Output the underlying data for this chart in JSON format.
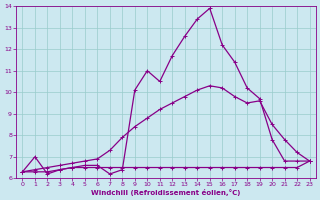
{
  "xlabel": "Windchill (Refroidissement éolien,°C)",
  "xlim": [
    -0.5,
    23.5
  ],
  "ylim": [
    6,
    14
  ],
  "xticks": [
    0,
    1,
    2,
    3,
    4,
    5,
    6,
    7,
    8,
    9,
    10,
    11,
    12,
    13,
    14,
    15,
    16,
    17,
    18,
    19,
    20,
    21,
    22,
    23
  ],
  "yticks": [
    6,
    7,
    8,
    9,
    10,
    11,
    12,
    13,
    14
  ],
  "bg_color": "#cce8f0",
  "line_color": "#880088",
  "grid_color": "#99cccc",
  "line1_x": [
    0,
    1,
    2,
    3,
    4,
    5,
    6,
    7,
    8,
    9,
    10,
    11,
    12,
    13,
    14,
    15,
    16,
    17,
    18,
    19,
    20,
    21,
    22,
    23
  ],
  "line1_y": [
    6.3,
    7.0,
    6.2,
    6.4,
    6.5,
    6.6,
    6.6,
    6.2,
    6.4,
    10.1,
    11.0,
    10.5,
    11.7,
    12.6,
    13.4,
    13.9,
    12.2,
    11.4,
    10.2,
    9.7,
    7.8,
    6.8,
    6.8,
    6.8
  ],
  "line2_x": [
    0,
    1,
    2,
    3,
    4,
    5,
    6,
    7,
    8,
    9,
    10,
    11,
    12,
    13,
    14,
    15,
    16,
    17,
    18,
    19,
    20,
    21,
    22,
    23
  ],
  "line2_y": [
    6.3,
    6.4,
    6.5,
    6.6,
    6.7,
    6.8,
    6.9,
    7.3,
    7.9,
    8.4,
    8.8,
    9.2,
    9.5,
    9.8,
    10.1,
    10.3,
    10.2,
    9.8,
    9.5,
    9.6,
    8.5,
    7.8,
    7.2,
    6.8
  ],
  "line3_x": [
    0,
    1,
    2,
    3,
    4,
    5,
    6,
    7,
    8,
    9,
    10,
    11,
    12,
    13,
    14,
    15,
    16,
    17,
    18,
    19,
    20,
    21,
    22,
    23
  ],
  "line3_y": [
    6.3,
    6.3,
    6.3,
    6.4,
    6.5,
    6.5,
    6.5,
    6.5,
    6.5,
    6.5,
    6.5,
    6.5,
    6.5,
    6.5,
    6.5,
    6.5,
    6.5,
    6.5,
    6.5,
    6.5,
    6.5,
    6.5,
    6.5,
    6.8
  ]
}
